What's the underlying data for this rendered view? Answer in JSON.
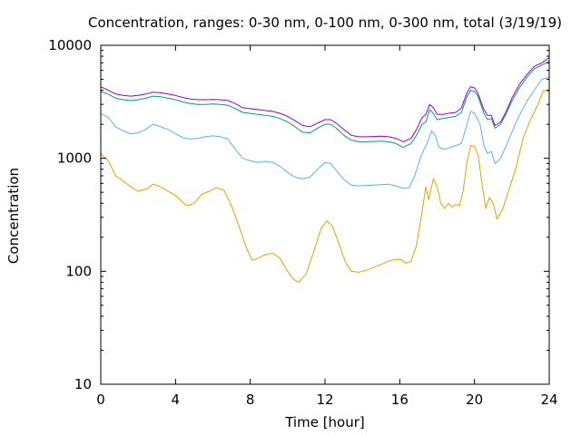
{
  "chart_data": {
    "type": "line",
    "title": "Concentration, ranges: 0-30 nm, 0-100 nm, 0-300 nm, total (3/19/19)",
    "xlabel": "Time [hour]",
    "ylabel": "Concentration",
    "xlim": [
      0,
      24
    ],
    "ylim": [
      10,
      10000
    ],
    "yscale": "log",
    "grid": false,
    "legend": "none",
    "x_ticks": [
      "0",
      "4",
      "8",
      "12",
      "16",
      "20",
      "24"
    ],
    "y_ticks": [
      "10",
      "100",
      "1000",
      "10000"
    ],
    "x_tick_values": [
      0,
      4,
      8,
      12,
      16,
      20,
      24
    ],
    "y_tick_values": [
      10,
      100,
      1000,
      10000
    ],
    "series": [
      {
        "color": "#e69f00",
        "points": [
          [
            0,
            1100
          ],
          [
            0.4,
            950
          ],
          [
            0.8,
            700
          ],
          [
            1.2,
            630
          ],
          [
            1.6,
            560
          ],
          [
            2.0,
            510
          ],
          [
            2.5,
            540
          ],
          [
            2.8,
            590
          ],
          [
            3.2,
            560
          ],
          [
            3.6,
            510
          ],
          [
            4.0,
            470
          ],
          [
            4.3,
            420
          ],
          [
            4.6,
            380
          ],
          [
            5.0,
            400
          ],
          [
            5.4,
            480
          ],
          [
            5.8,
            510
          ],
          [
            6.2,
            550
          ],
          [
            6.6,
            520
          ],
          [
            7.0,
            380
          ],
          [
            7.4,
            250
          ],
          [
            7.8,
            160
          ],
          [
            8.1,
            125
          ],
          [
            8.4,
            130
          ],
          [
            8.8,
            140
          ],
          [
            9.2,
            145
          ],
          [
            9.6,
            130
          ],
          [
            10.0,
            100
          ],
          [
            10.3,
            85
          ],
          [
            10.6,
            80
          ],
          [
            11.0,
            95
          ],
          [
            11.4,
            150
          ],
          [
            11.8,
            240
          ],
          [
            12.1,
            280
          ],
          [
            12.4,
            250
          ],
          [
            12.8,
            165
          ],
          [
            13.1,
            120
          ],
          [
            13.4,
            100
          ],
          [
            13.8,
            98
          ],
          [
            14.2,
            102
          ],
          [
            14.6,
            108
          ],
          [
            15.0,
            115
          ],
          [
            15.4,
            123
          ],
          [
            15.8,
            128
          ],
          [
            16.1,
            126
          ],
          [
            16.3,
            118
          ],
          [
            16.6,
            122
          ],
          [
            16.9,
            170
          ],
          [
            17.2,
            340
          ],
          [
            17.4,
            560
          ],
          [
            17.55,
            430
          ],
          [
            17.8,
            660
          ],
          [
            18.0,
            560
          ],
          [
            18.2,
            400
          ],
          [
            18.4,
            360
          ],
          [
            18.6,
            400
          ],
          [
            18.8,
            370
          ],
          [
            19.0,
            390
          ],
          [
            19.2,
            380
          ],
          [
            19.4,
            520
          ],
          [
            19.6,
            920
          ],
          [
            19.8,
            1300
          ],
          [
            20.0,
            1280
          ],
          [
            20.2,
            1050
          ],
          [
            20.4,
            600
          ],
          [
            20.6,
            360
          ],
          [
            20.8,
            450
          ],
          [
            21.0,
            400
          ],
          [
            21.2,
            290
          ],
          [
            21.5,
            350
          ],
          [
            21.8,
            500
          ],
          [
            22.2,
            800
          ],
          [
            22.6,
            1500
          ],
          [
            23.0,
            2200
          ],
          [
            23.4,
            3000
          ],
          [
            23.7,
            4000
          ],
          [
            24.0,
            3900
          ]
        ]
      },
      {
        "color": "#56b4e9",
        "points": [
          [
            0,
            2500
          ],
          [
            0.4,
            2300
          ],
          [
            0.8,
            1900
          ],
          [
            1.2,
            1750
          ],
          [
            1.6,
            1650
          ],
          [
            2.0,
            1680
          ],
          [
            2.4,
            1800
          ],
          [
            2.8,
            2000
          ],
          [
            3.2,
            1900
          ],
          [
            3.6,
            1800
          ],
          [
            4.0,
            1650
          ],
          [
            4.4,
            1520
          ],
          [
            4.8,
            1480
          ],
          [
            5.2,
            1500
          ],
          [
            5.6,
            1550
          ],
          [
            6.0,
            1580
          ],
          [
            6.4,
            1550
          ],
          [
            6.8,
            1480
          ],
          [
            7.2,
            1200
          ],
          [
            7.6,
            1000
          ],
          [
            8.0,
            950
          ],
          [
            8.4,
            920
          ],
          [
            8.8,
            940
          ],
          [
            9.2,
            920
          ],
          [
            9.6,
            850
          ],
          [
            10.0,
            750
          ],
          [
            10.4,
            680
          ],
          [
            10.8,
            660
          ],
          [
            11.2,
            680
          ],
          [
            11.6,
            800
          ],
          [
            12.0,
            920
          ],
          [
            12.3,
            900
          ],
          [
            12.6,
            780
          ],
          [
            13.0,
            650
          ],
          [
            13.4,
            580
          ],
          [
            13.8,
            570
          ],
          [
            14.2,
            575
          ],
          [
            14.6,
            580
          ],
          [
            15.0,
            585
          ],
          [
            15.4,
            590
          ],
          [
            15.8,
            570
          ],
          [
            16.2,
            540
          ],
          [
            16.5,
            550
          ],
          [
            16.8,
            700
          ],
          [
            17.1,
            1000
          ],
          [
            17.3,
            1200
          ],
          [
            17.5,
            1400
          ],
          [
            17.7,
            1750
          ],
          [
            17.9,
            1600
          ],
          [
            18.1,
            1250
          ],
          [
            18.4,
            1200
          ],
          [
            18.7,
            1250
          ],
          [
            19.0,
            1300
          ],
          [
            19.3,
            1350
          ],
          [
            19.6,
            2000
          ],
          [
            19.8,
            2600
          ],
          [
            20.0,
            2500
          ],
          [
            20.3,
            2000
          ],
          [
            20.5,
            1300
          ],
          [
            20.7,
            1100
          ],
          [
            20.9,
            1150
          ],
          [
            21.1,
            900
          ],
          [
            21.4,
            1000
          ],
          [
            21.7,
            1300
          ],
          [
            22.0,
            1700
          ],
          [
            22.4,
            2400
          ],
          [
            22.8,
            3200
          ],
          [
            23.2,
            4000
          ],
          [
            23.6,
            5000
          ],
          [
            24.0,
            5200
          ]
        ]
      },
      {
        "color": "#009e73",
        "points": [
          [
            0,
            3900
          ],
          [
            0.4,
            3700
          ],
          [
            0.8,
            3400
          ],
          [
            1.2,
            3300
          ],
          [
            1.6,
            3250
          ],
          [
            2.0,
            3300
          ],
          [
            2.4,
            3400
          ],
          [
            2.8,
            3550
          ],
          [
            3.2,
            3500
          ],
          [
            3.6,
            3400
          ],
          [
            4.0,
            3300
          ],
          [
            4.4,
            3150
          ],
          [
            4.8,
            3050
          ],
          [
            5.2,
            3000
          ],
          [
            5.6,
            3000
          ],
          [
            6.0,
            3020
          ],
          [
            6.4,
            3000
          ],
          [
            6.8,
            2950
          ],
          [
            7.2,
            2750
          ],
          [
            7.6,
            2550
          ],
          [
            8.0,
            2500
          ],
          [
            8.4,
            2450
          ],
          [
            8.8,
            2400
          ],
          [
            9.2,
            2350
          ],
          [
            9.6,
            2250
          ],
          [
            10.0,
            2100
          ],
          [
            10.4,
            1900
          ],
          [
            10.8,
            1700
          ],
          [
            11.2,
            1680
          ],
          [
            11.6,
            1850
          ],
          [
            12.0,
            2000
          ],
          [
            12.3,
            2000
          ],
          [
            12.6,
            1850
          ],
          [
            13.0,
            1600
          ],
          [
            13.4,
            1450
          ],
          [
            13.8,
            1400
          ],
          [
            14.2,
            1400
          ],
          [
            14.6,
            1410
          ],
          [
            15.0,
            1420
          ],
          [
            15.4,
            1400
          ],
          [
            15.8,
            1350
          ],
          [
            16.2,
            1250
          ],
          [
            16.6,
            1350
          ],
          [
            16.9,
            1600
          ],
          [
            17.2,
            2000
          ],
          [
            17.4,
            2100
          ],
          [
            17.6,
            2700
          ],
          [
            17.8,
            2500
          ],
          [
            18.0,
            2200
          ],
          [
            18.3,
            2250
          ],
          [
            18.6,
            2300
          ],
          [
            19.0,
            2350
          ],
          [
            19.3,
            2550
          ],
          [
            19.6,
            3500
          ],
          [
            19.8,
            4000
          ],
          [
            20.0,
            3900
          ],
          [
            20.2,
            3500
          ],
          [
            20.5,
            2500
          ],
          [
            20.7,
            2200
          ],
          [
            20.9,
            2250
          ],
          [
            21.1,
            1850
          ],
          [
            21.4,
            2000
          ],
          [
            21.7,
            2500
          ],
          [
            22.0,
            3200
          ],
          [
            22.4,
            4200
          ],
          [
            22.8,
            5200
          ],
          [
            23.2,
            6200
          ],
          [
            23.6,
            6700
          ],
          [
            24.0,
            7200
          ]
        ]
      },
      {
        "color": "#9400d3",
        "points": [
          [
            0,
            4300
          ],
          [
            0.4,
            4000
          ],
          [
            0.8,
            3700
          ],
          [
            1.2,
            3600
          ],
          [
            1.6,
            3550
          ],
          [
            2.0,
            3600
          ],
          [
            2.4,
            3700
          ],
          [
            2.8,
            3850
          ],
          [
            3.2,
            3800
          ],
          [
            3.6,
            3700
          ],
          [
            4.0,
            3600
          ],
          [
            4.4,
            3450
          ],
          [
            4.8,
            3350
          ],
          [
            5.2,
            3300
          ],
          [
            5.6,
            3300
          ],
          [
            6.0,
            3320
          ],
          [
            6.4,
            3300
          ],
          [
            6.8,
            3250
          ],
          [
            7.2,
            3050
          ],
          [
            7.6,
            2800
          ],
          [
            8.0,
            2750
          ],
          [
            8.4,
            2700
          ],
          [
            8.8,
            2650
          ],
          [
            9.2,
            2600
          ],
          [
            9.6,
            2500
          ],
          [
            10.0,
            2350
          ],
          [
            10.4,
            2150
          ],
          [
            10.8,
            1950
          ],
          [
            11.2,
            1900
          ],
          [
            11.6,
            2050
          ],
          [
            12.0,
            2200
          ],
          [
            12.3,
            2200
          ],
          [
            12.6,
            2050
          ],
          [
            13.0,
            1800
          ],
          [
            13.4,
            1600
          ],
          [
            13.8,
            1550
          ],
          [
            14.2,
            1550
          ],
          [
            14.6,
            1560
          ],
          [
            15.0,
            1570
          ],
          [
            15.4,
            1550
          ],
          [
            15.8,
            1500
          ],
          [
            16.2,
            1400
          ],
          [
            16.6,
            1500
          ],
          [
            16.9,
            1800
          ],
          [
            17.2,
            2300
          ],
          [
            17.4,
            2450
          ],
          [
            17.6,
            3000
          ],
          [
            17.8,
            2800
          ],
          [
            18.0,
            2450
          ],
          [
            18.3,
            2450
          ],
          [
            18.6,
            2500
          ],
          [
            19.0,
            2550
          ],
          [
            19.3,
            2800
          ],
          [
            19.6,
            3800
          ],
          [
            19.8,
            4300
          ],
          [
            20.0,
            4200
          ],
          [
            20.2,
            3700
          ],
          [
            20.5,
            2700
          ],
          [
            20.7,
            2400
          ],
          [
            20.9,
            2400
          ],
          [
            21.1,
            1950
          ],
          [
            21.4,
            2100
          ],
          [
            21.7,
            2600
          ],
          [
            22.0,
            3400
          ],
          [
            22.4,
            4500
          ],
          [
            22.8,
            5500
          ],
          [
            23.2,
            6500
          ],
          [
            23.6,
            7000
          ],
          [
            24.0,
            7800
          ]
        ]
      }
    ]
  }
}
